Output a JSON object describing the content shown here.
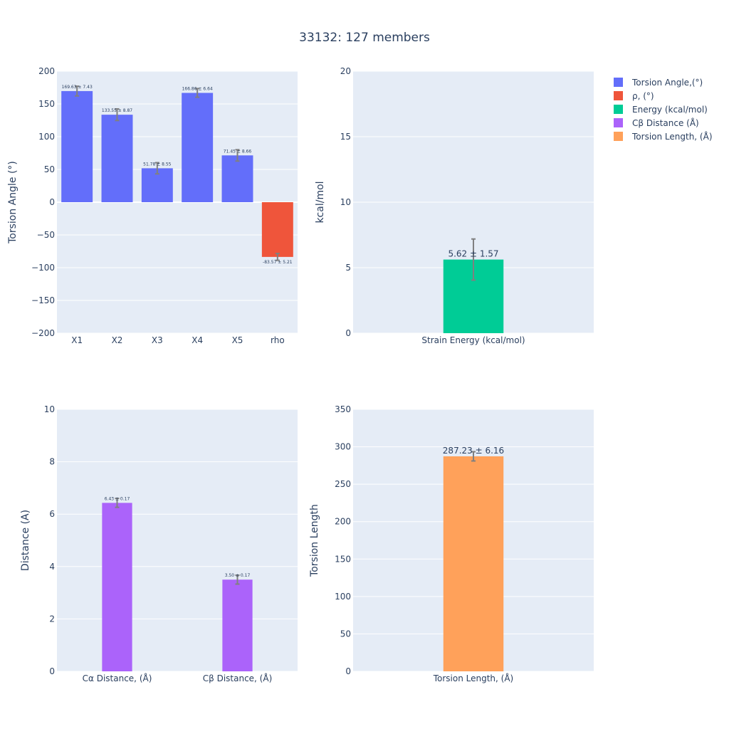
{
  "title": "33132: 127 members",
  "legend": [
    {
      "name": "Torsion Angle,(°)",
      "color": "#636efa"
    },
    {
      "name": "ρ, (°)",
      "color": "#ef553b"
    },
    {
      "name": "Energy (kcal/mol)",
      "color": "#00cc96"
    },
    {
      "name": "Cβ Distance (Å)",
      "color": "#ab63fa"
    },
    {
      "name": "Torsion Length, (Å)",
      "color": "#ffa15a"
    }
  ],
  "chart_data": [
    {
      "type": "bar",
      "ylabel": "Torsion Angle (°)",
      "ylim": [
        -200,
        200
      ],
      "yticks": [
        -200,
        -150,
        -100,
        -50,
        0,
        50,
        100,
        150,
        200
      ],
      "ytick_labels": [
        "−200",
        "−150",
        "−100",
        "−50",
        "0",
        "50",
        "100",
        "150",
        "200"
      ],
      "categories": [
        "X1",
        "X2",
        "X3",
        "X4",
        "X5",
        "rho"
      ],
      "values": [
        169.63,
        133.55,
        51.78,
        166.86,
        71.45,
        -83.57
      ],
      "errors": [
        7.43,
        8.87,
        8.55,
        6.64,
        8.66,
        5.21
      ],
      "labels": [
        "169.63 ± 7.43",
        "133.55 ± 8.87",
        "51.78 ± 8.55",
        "166.86 ± 6.64",
        "71.45 ± 8.66",
        "-83.57 ± 5.21"
      ],
      "colors": [
        "#636efa",
        "#636efa",
        "#636efa",
        "#636efa",
        "#636efa",
        "#ef553b"
      ],
      "grid": true
    },
    {
      "type": "bar",
      "ylabel": "kcal/mol",
      "ylim": [
        0,
        20
      ],
      "yticks": [
        0,
        5,
        10,
        15,
        20
      ],
      "ytick_labels": [
        "0",
        "5",
        "10",
        "15",
        "20"
      ],
      "categories": [
        "Strain Energy (kcal/mol)"
      ],
      "values": [
        5.62
      ],
      "errors": [
        1.57
      ],
      "labels": [
        "5.62 ± 1.57"
      ],
      "colors": [
        "#00cc96"
      ],
      "grid": true
    },
    {
      "type": "bar",
      "ylabel": "Distance (A)",
      "ylim": [
        0,
        10
      ],
      "yticks": [
        0,
        2,
        4,
        6,
        8,
        10
      ],
      "ytick_labels": [
        "0",
        "2",
        "4",
        "6",
        "8",
        "10"
      ],
      "categories": [
        "Cα Distance, (Å)",
        "Cβ Distance, (Å)"
      ],
      "values": [
        6.43,
        3.5
      ],
      "errors": [
        0.17,
        0.17
      ],
      "labels": [
        "6.43 ± 0.17",
        "3.50 ± 0.17"
      ],
      "colors": [
        "#ab63fa",
        "#ab63fa"
      ],
      "grid": true
    },
    {
      "type": "bar",
      "ylabel": "Torsion Length",
      "ylim": [
        0,
        350
      ],
      "yticks": [
        0,
        50,
        100,
        150,
        200,
        250,
        300,
        350
      ],
      "ytick_labels": [
        "0",
        "50",
        "100",
        "150",
        "200",
        "250",
        "300",
        "350"
      ],
      "categories": [
        "Torsion Length, (Å)"
      ],
      "values": [
        287.23
      ],
      "errors": [
        6.16
      ],
      "labels": [
        "287.23 ± 6.16"
      ],
      "colors": [
        "#ffa15a"
      ],
      "grid": true
    }
  ]
}
